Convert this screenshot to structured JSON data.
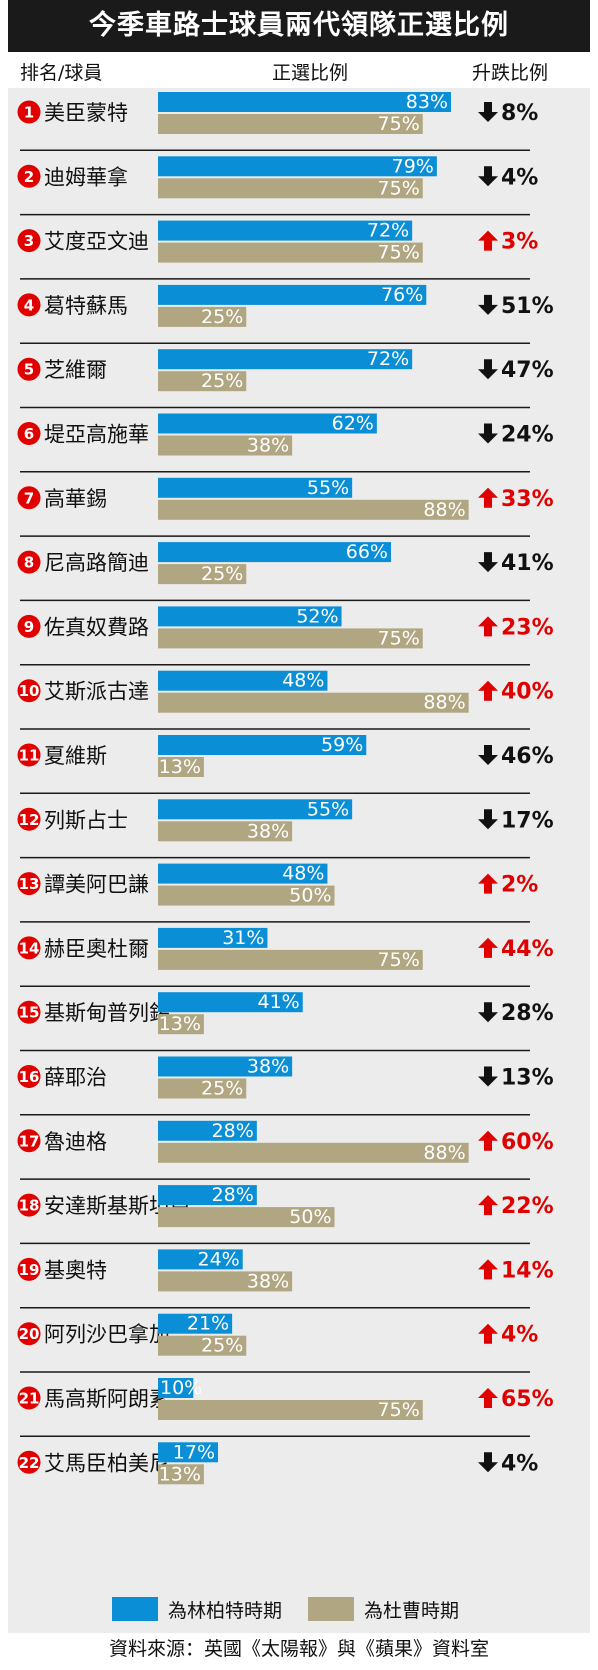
{
  "chart_data": {
    "type": "bar",
    "title": "今季車路士球員兩代領隊正選比例",
    "header_rank": "排名/球員",
    "header_ratio": "正選比例",
    "header_change": "升跌比例",
    "colors": {
      "series_a": "#0a8fd6",
      "series_b": "#b1a682",
      "up": "#e00000",
      "down": "#111111",
      "rank_badge": "#e00000"
    },
    "series": [
      {
        "name": "為林柏特時期",
        "values": [
          83,
          79,
          72,
          76,
          72,
          62,
          55,
          66,
          52,
          48,
          59,
          55,
          48,
          31,
          41,
          38,
          28,
          28,
          24,
          21,
          10,
          17
        ]
      },
      {
        "name": "為杜曹時期",
        "values": [
          75,
          75,
          75,
          25,
          25,
          38,
          88,
          25,
          75,
          88,
          13,
          38,
          50,
          75,
          13,
          25,
          88,
          50,
          38,
          25,
          75,
          13
        ]
      }
    ],
    "rows": [
      {
        "rank": "1",
        "name": "美臣蒙特",
        "change": "8%",
        "dir": "down"
      },
      {
        "rank": "2",
        "name": "迪姆華拿",
        "change": "4%",
        "dir": "down"
      },
      {
        "rank": "3",
        "name": "艾度亞文迪",
        "change": "3%",
        "dir": "up"
      },
      {
        "rank": "4",
        "name": "葛特蘇馬",
        "change": "51%",
        "dir": "down"
      },
      {
        "rank": "5",
        "name": "芝維爾",
        "change": "47%",
        "dir": "down"
      },
      {
        "rank": "6",
        "name": "堤亞高施華",
        "change": "24%",
        "dir": "down"
      },
      {
        "rank": "7",
        "name": "高華錫",
        "change": "33%",
        "dir": "up"
      },
      {
        "rank": "8",
        "name": "尼高路簡迪",
        "change": "41%",
        "dir": "down"
      },
      {
        "rank": "9",
        "name": "佐真奴費路",
        "change": "23%",
        "dir": "up"
      },
      {
        "rank": "10",
        "name": "艾斯派古達",
        "change": "40%",
        "dir": "up"
      },
      {
        "rank": "11",
        "name": "夏維斯",
        "change": "46%",
        "dir": "down"
      },
      {
        "rank": "12",
        "name": "列斯占士",
        "change": "17%",
        "dir": "down"
      },
      {
        "rank": "13",
        "name": "譚美阿巴謙",
        "change": "2%",
        "dir": "up"
      },
      {
        "rank": "14",
        "name": "赫臣奧杜爾",
        "change": "44%",
        "dir": "up"
      },
      {
        "rank": "15",
        "name": "基斯甸普列錫",
        "change": "28%",
        "dir": "down"
      },
      {
        "rank": "16",
        "name": "薛耶治",
        "change": "13%",
        "dir": "down"
      },
      {
        "rank": "17",
        "name": "魯迪格",
        "change": "60%",
        "dir": "up"
      },
      {
        "rank": "18",
        "name": "安達斯基斯坦臣",
        "change": "22%",
        "dir": "up"
      },
      {
        "rank": "19",
        "name": "基奧特",
        "change": "14%",
        "dir": "up"
      },
      {
        "rank": "20",
        "name": "阿列沙巴拿加",
        "change": "4%",
        "dir": "up"
      },
      {
        "rank": "21",
        "name": "馬高斯阿朗素",
        "change": "65%",
        "dir": "up"
      },
      {
        "rank": "22",
        "name": "艾馬臣柏美尼",
        "change": "4%",
        "dir": "down"
      }
    ],
    "source": "資料來源：英國《太陽報》與《蘋果》資料室",
    "xlim": [
      0,
      100
    ],
    "grid": false,
    "legend_position": "bottom"
  }
}
